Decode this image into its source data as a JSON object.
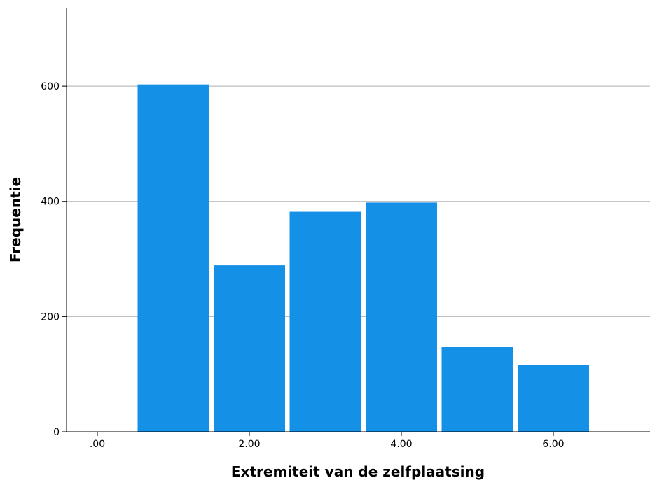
{
  "chart_data": {
    "type": "bar",
    "title": "",
    "xlabel": "Extremiteit van de zelfplaatsing",
    "ylabel": "Frequentie",
    "x_ticks": [
      ".00",
      "2.00",
      "4.00",
      "6.00"
    ],
    "x_tick_values": [
      0,
      2,
      4,
      6
    ],
    "y_ticks": [
      "0",
      "200",
      "400",
      "600"
    ],
    "y_tick_values": [
      0,
      200,
      400,
      600
    ],
    "ylim": [
      0,
      735
    ],
    "xlim": [
      -0.5,
      7.2
    ],
    "grid": true,
    "bar_color": "#1490E6",
    "bins": [
      {
        "x": 1,
        "value": 603
      },
      {
        "x": 2,
        "value": 289
      },
      {
        "x": 3,
        "value": 382
      },
      {
        "x": 4,
        "value": 398
      },
      {
        "x": 5,
        "value": 147
      },
      {
        "x": 6,
        "value": 116
      }
    ]
  }
}
